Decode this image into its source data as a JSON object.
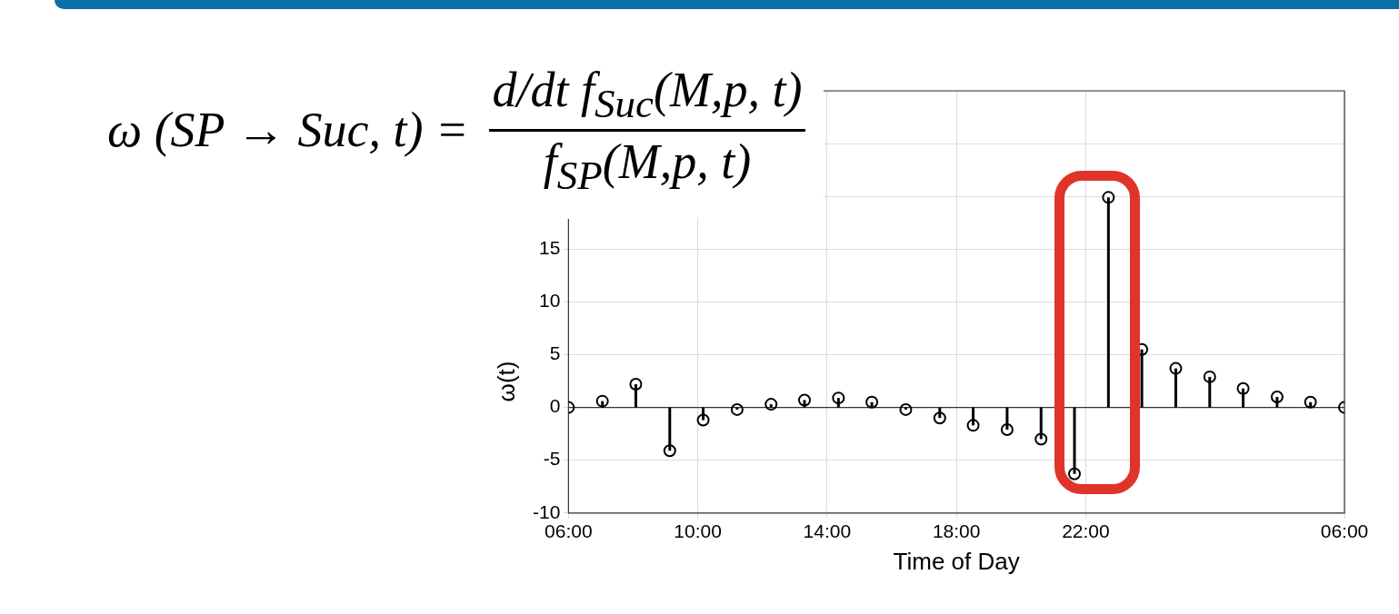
{
  "chart_data": {
    "type": "lollipop",
    "xlabel": "Time of Day",
    "ylabel": "ω(t)",
    "annotations": [
      "ω (SP → Suc, t) =",
      "d/dt f$_{Suc}$(M,p, t)",
      "f$_{SP}$(M,p, t)"
    ],
    "x": [
      "2000-01-01T06:00",
      "2000-01-01T07:03",
      "2000-01-01T08:05",
      "2000-01-01T09:08",
      "2000-01-01T10:10",
      "2000-01-01T11:13",
      "2000-01-01T12:16",
      "2000-01-01T13:18",
      "2000-01-01T14:21",
      "2000-01-01T15:23",
      "2000-01-01T16:26",
      "2000-01-01T17:29",
      "2000-01-01T18:31",
      "2000-01-01T19:34",
      "2000-01-01T20:37",
      "2000-01-01T21:39",
      "2000-01-01T22:42",
      "2000-01-01T23:44",
      "2000-01-02T00:47",
      "2000-01-02T01:50",
      "2000-01-02T02:52",
      "2000-01-02T03:55",
      "2000-01-02T04:57",
      "2000-01-02T06:00"
    ],
    "series": [
      {
        "color": "#000000",
        "values": [
          0,
          0.6,
          2.2,
          -4.1,
          -1.2,
          -0.2,
          0.3,
          0.7,
          0.9,
          0.5,
          -0.2,
          -1.0,
          -1.7,
          -2.1,
          -3.0,
          -6.3,
          19.9,
          5.5,
          3.7,
          2.9,
          1.8,
          1.0,
          0.5,
          0
        ]
      }
    ],
    "xlim": [
      "2000-01-01T06:00",
      "2000-01-02T06:00"
    ],
    "xticks": [
      {
        "value": "2000-01-01T06:00",
        "label": "06:00"
      },
      {
        "value": "2000-01-01T10:00",
        "label": "10:00"
      },
      {
        "value": "2000-01-01T14:00",
        "label": "14:00"
      },
      {
        "value": "2000-01-01T18:00",
        "label": "18:00"
      },
      {
        "value": "2000-01-01T22:00",
        "label": "22:00"
      },
      {
        "value": "2000-01-02T06:00",
        "label": "06:00"
      }
    ],
    "ylim": [
      -10,
      30
    ],
    "yticks": [
      -10,
      -5,
      0,
      5,
      10,
      15,
      {
        "value": 20,
        "label": null
      },
      {
        "value": 25,
        "label": null
      },
      {
        "value": 30,
        "label": null
      }
    ],
    "grid": true,
    "marker": "circle",
    "legend": false
  }
}
